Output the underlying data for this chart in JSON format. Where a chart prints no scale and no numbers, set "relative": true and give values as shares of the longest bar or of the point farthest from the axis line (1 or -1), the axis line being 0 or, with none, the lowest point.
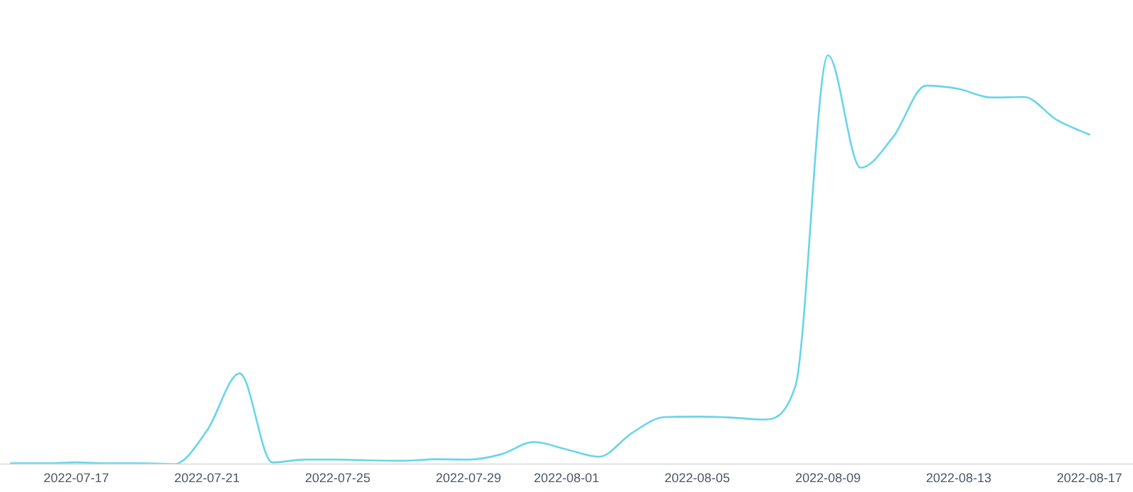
{
  "chart_data": {
    "type": "line",
    "relative": true,
    "x": [
      "2022-07-15",
      "2022-07-16",
      "2022-07-17",
      "2022-07-18",
      "2022-07-19",
      "2022-07-20",
      "2022-07-21",
      "2022-07-22",
      "2022-07-23",
      "2022-07-24",
      "2022-07-25",
      "2022-07-26",
      "2022-07-27",
      "2022-07-28",
      "2022-07-29",
      "2022-07-30",
      "2022-07-31",
      "2022-08-01",
      "2022-08-02",
      "2022-08-03",
      "2022-08-04",
      "2022-08-05",
      "2022-08-06",
      "2022-08-07",
      "2022-08-08",
      "2022-08-09",
      "2022-08-10",
      "2022-08-11",
      "2022-08-12",
      "2022-08-13",
      "2022-08-14",
      "2022-08-15",
      "2022-08-16",
      "2022-08-17"
    ],
    "series": [
      {
        "color": "#69d5e9",
        "values": [
          0.002,
          0.002,
          0.004,
          0.002,
          0.002,
          0,
          0.082,
          0.222,
          0.004,
          0.011,
          0.011,
          0.009,
          0.008,
          0.012,
          0.011,
          0.024,
          0.054,
          0.036,
          0.018,
          0.076,
          0.115,
          0.116,
          0.114,
          0.109,
          0.19,
          1,
          0.725,
          0.801,
          0.926,
          0.918,
          0.897,
          0.898,
          0.842,
          0.806
        ]
      }
    ],
    "xlim": [
      "2022-07-14T16:00",
      "2022-08-18T08:00"
    ],
    "xticks": [
      "2022-07-17",
      "2022-07-21",
      "2022-07-25",
      "2022-07-29",
      "2022-08-01",
      "2022-08-05",
      "2022-08-09",
      "2022-08-13",
      "2022-08-17"
    ]
  }
}
